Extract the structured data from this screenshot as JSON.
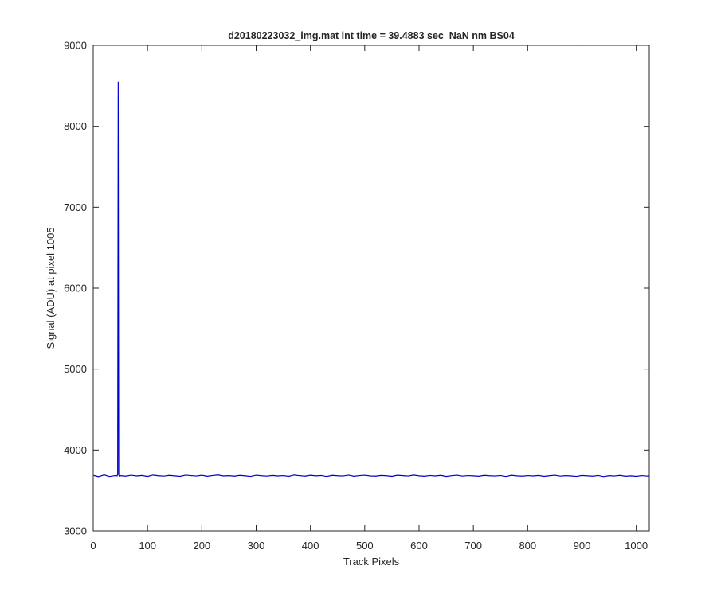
{
  "chart_data": {
    "type": "line",
    "title": "d20180223032_img.mat int time = 39.4883 sec  NaN nm BS04",
    "xlabel": "Track Pixels",
    "ylabel": "Signal (ADU) at pixel 1005",
    "color": "#0000cc",
    "xlim": [
      0,
      1024
    ],
    "ylim": [
      3000,
      9000
    ],
    "xticks": [
      0,
      100,
      200,
      300,
      400,
      500,
      600,
      700,
      800,
      900,
      1000
    ],
    "yticks": [
      3000,
      4000,
      5000,
      6000,
      7000,
      8000,
      9000
    ],
    "x": [
      1,
      10,
      20,
      30,
      40,
      44,
      45,
      46,
      47,
      48,
      50,
      60,
      70,
      80,
      90,
      100,
      110,
      120,
      130,
      140,
      150,
      160,
      170,
      180,
      190,
      200,
      210,
      220,
      230,
      240,
      250,
      260,
      270,
      280,
      290,
      300,
      310,
      320,
      330,
      340,
      350,
      360,
      370,
      380,
      390,
      400,
      410,
      420,
      430,
      440,
      450,
      460,
      470,
      480,
      490,
      500,
      510,
      520,
      530,
      540,
      550,
      560,
      570,
      580,
      590,
      600,
      610,
      620,
      630,
      640,
      650,
      660,
      670,
      680,
      690,
      700,
      710,
      720,
      730,
      740,
      750,
      760,
      770,
      780,
      790,
      800,
      810,
      820,
      830,
      840,
      850,
      860,
      870,
      880,
      890,
      900,
      910,
      920,
      930,
      940,
      950,
      960,
      970,
      980,
      990,
      1000,
      1010,
      1020,
      1024
    ],
    "values": [
      3685,
      3670,
      3692,
      3672,
      3683,
      3680,
      3700,
      8550,
      3690,
      3676,
      3682,
      3676,
      3688,
      3679,
      3685,
      3673,
      3690,
      3681,
      3677,
      3686,
      3680,
      3674,
      3689,
      3683,
      3678,
      3687,
      3675,
      3684,
      3691,
      3679,
      3682,
      3676,
      3686,
      3680,
      3673,
      3688,
      3681,
      3677,
      3685,
      3679,
      3683,
      3674,
      3690,
      3682,
      3676,
      3687,
      3680,
      3684,
      3672,
      3686,
      3681,
      3678,
      3689,
      3675,
      3683,
      3688,
      3679,
      3676,
      3685,
      3681,
      3674,
      3687,
      3682,
      3678,
      3690,
      3680,
      3675,
      3684,
      3679,
      3686,
      3673,
      3682,
      3688,
      3677,
      3683,
      3680,
      3675,
      3686,
      3681,
      3678,
      3684,
      3672,
      3687,
      3680,
      3676,
      3683,
      3679,
      3685,
      3674,
      3681,
      3688,
      3677,
      3682,
      3679,
      3673,
      3685,
      3680,
      3676,
      3684,
      3671,
      3682,
      3678,
      3686,
      3675,
      3680,
      3674,
      3683,
      3677,
      3680
    ]
  }
}
